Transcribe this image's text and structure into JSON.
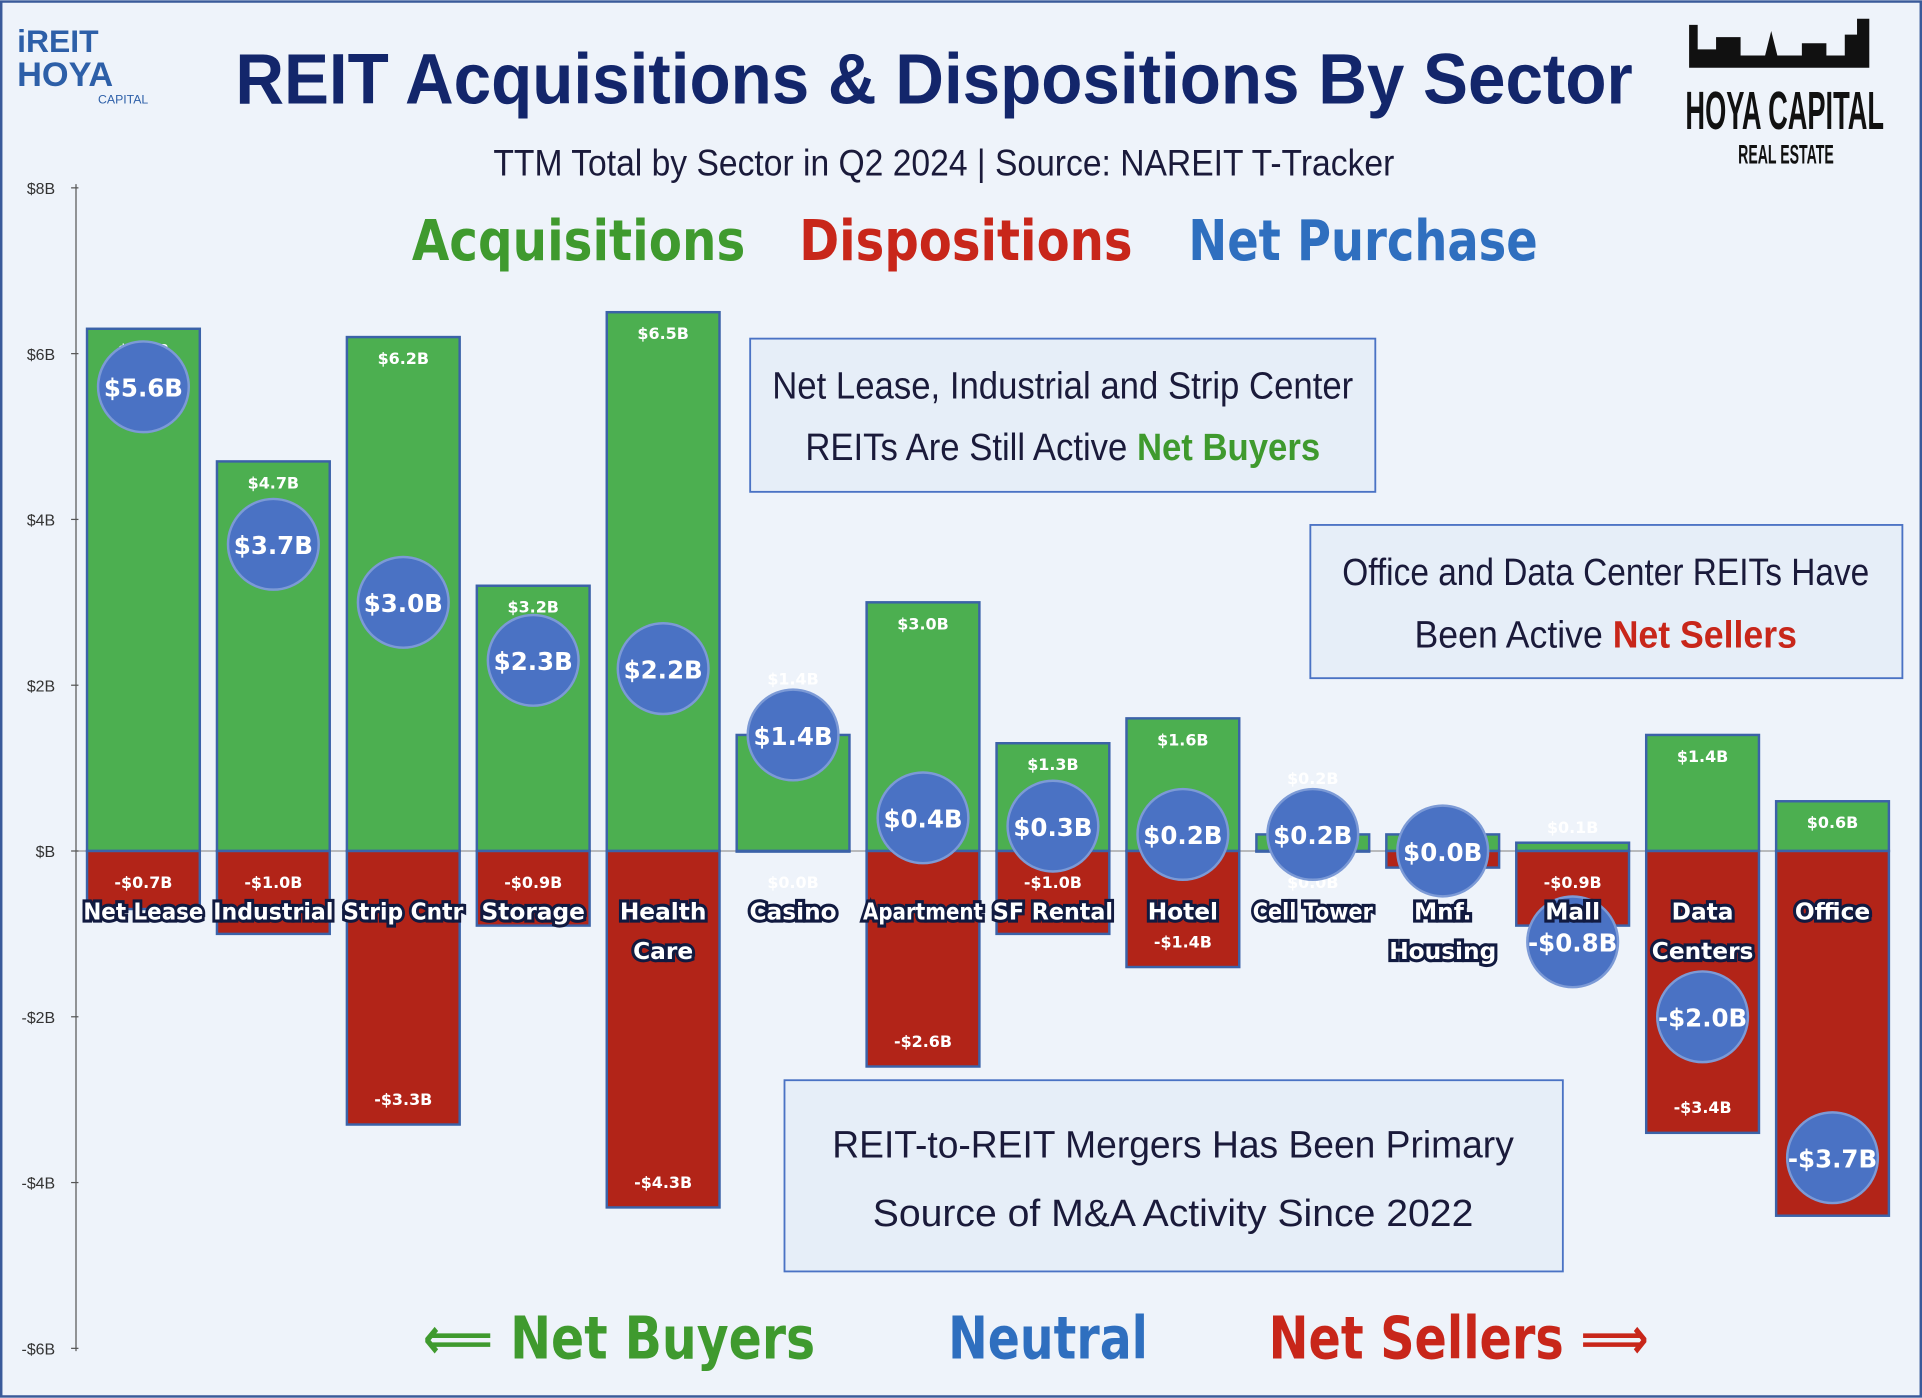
{
  "logos": {
    "left": "iREIT HOYA CAPITAL",
    "right": "HOYA CAPITAL REAL ESTATE"
  },
  "chart_data": {
    "type": "bar",
    "title": "REIT Acquisitions & Dispositions By Sector",
    "subtitle": "TTM Total by Sector in Q2 2024 |  Source: NAREIT T-Tracker",
    "categories": [
      "Net Lease",
      "Industrial",
      "Strip Cntr",
      "Storage",
      "Health Care",
      "Casino",
      "Apartment",
      "SF Rental",
      "Hotel",
      "Cell Tower",
      "Mnf. Housing",
      "Mall",
      "Data Centers",
      "Office"
    ],
    "series": [
      {
        "name": "Acquisitions",
        "color": "#4caf50",
        "values": [
          6.3,
          4.7,
          6.2,
          3.2,
          6.5,
          1.4,
          3.0,
          1.3,
          1.6,
          0.2,
          0.2,
          0.1,
          1.4,
          0.6
        ]
      },
      {
        "name": "Dispositions",
        "color": "#b22418",
        "values": [
          -0.7,
          -1.0,
          -3.3,
          -0.9,
          -4.3,
          0.0,
          -2.6,
          -1.0,
          -1.4,
          0.0,
          -0.2,
          -0.9,
          -3.4,
          -4.4
        ]
      },
      {
        "name": "Net Purchase",
        "color": "#4a72c4",
        "values": [
          5.6,
          3.7,
          3.0,
          2.3,
          2.2,
          1.4,
          0.4,
          0.3,
          0.2,
          0.2,
          0.0,
          -0.8,
          -2.0,
          -3.7
        ]
      }
    ],
    "ylim": [
      -6,
      8
    ],
    "yticks": [
      "$8B",
      "$6B",
      "$4B",
      "$2B",
      "$B",
      "-$2B",
      "-$4B",
      "-$6B"
    ],
    "unit": "B",
    "grid": false,
    "legend": "top"
  },
  "annotations": {
    "buyers_box": {
      "line1": "Net Lease, Industrial and Strip Center",
      "line2": "REITs Are Still Active ",
      "highlight": "Net Buyers"
    },
    "sellers_box": {
      "line1": "Office and Data Center REITs Have",
      "line2": "Been Active ",
      "highlight": "Net Sellers"
    },
    "mergers_box": {
      "line1": "REIT-to-REIT Mergers Has Been Primary",
      "line2": "Source of M&A Activity Since 2022"
    }
  },
  "footer": {
    "buyers": "⟸ Net Buyers",
    "neutral": "Neutral",
    "sellers": "Net Sellers ⟹"
  }
}
